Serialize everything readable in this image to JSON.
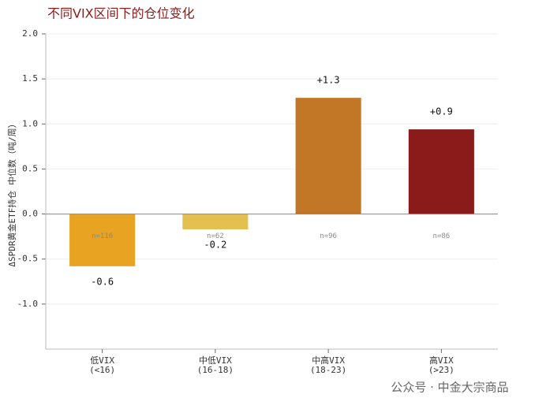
{
  "chart_data": {
    "type": "bar",
    "title": "不同VIX区间下的仓位变化",
    "y_label": "ΔSPDR黄金ETF持仓 中位数（吨/周）",
    "categories": [
      "低VIX",
      "中低VIX",
      "中高VIX",
      "高VIX"
    ],
    "category_ranges": [
      "(<16)",
      "(16-18)",
      "(18-23)",
      "(>23)"
    ],
    "values": [
      -0.58,
      -0.17,
      1.29,
      0.94
    ],
    "value_labels": [
      "-0.6",
      "-0.2",
      "+1.3",
      "+0.9"
    ],
    "sample_labels": [
      "n=116",
      "n=62",
      "n=96",
      "n=86"
    ],
    "colors": [
      "#e8a323",
      "#e3c04f",
      "#c27727",
      "#8b1a1a"
    ],
    "ylim": [
      -1.5,
      2.0
    ],
    "yticks": [
      {
        "value": -1,
        "label": "-1.0"
      },
      {
        "value": -0.5,
        "label": "-0.5"
      },
      {
        "value": 0,
        "label": "0.0"
      },
      {
        "value": 0.5,
        "label": "0.5"
      },
      {
        "value": 1,
        "label": "1.0"
      },
      {
        "value": 1.5,
        "label": "1.5"
      },
      {
        "value": 2,
        "label": "2.0"
      }
    ],
    "grid": true,
    "watermark": "公众号 · 中金大宗商品"
  }
}
